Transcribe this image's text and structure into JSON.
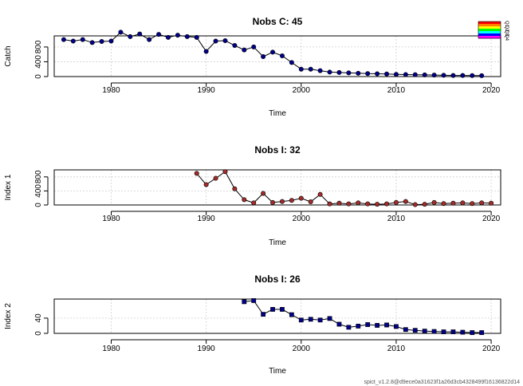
{
  "footer": "spict_v1.2.8@d9ece0a31623f1a26d3cb4328499f16136822d14",
  "colorbar": {
    "colors": [
      "#ff0000",
      "#ff8000",
      "#ffff00",
      "#00ff00",
      "#00ffff",
      "#0000ff",
      "#ff00ff"
    ],
    "labels": [
      "Q1",
      "Q2",
      "Q3",
      "Q4"
    ]
  },
  "chart_data": [
    {
      "type": "line",
      "title": "Nobs C: 45",
      "xlabel": "Time",
      "ylabel": "Catch",
      "xlim": [
        1974,
        2021
      ],
      "ylim": [
        0,
        1100
      ],
      "xticks": [
        1980,
        1990,
        2000,
        2010,
        2020
      ],
      "yticks": [
        0,
        400,
        800
      ],
      "grid": true,
      "marker": "circle",
      "point_color": "#00008b",
      "x": [
        1975,
        1976,
        1977,
        1978,
        1979,
        1980,
        1981,
        1982,
        1983,
        1984,
        1985,
        1986,
        1987,
        1988,
        1989,
        1990,
        1991,
        1992,
        1993,
        1994,
        1995,
        1996,
        1997,
        1998,
        1999,
        2000,
        2001,
        2002,
        2003,
        2004,
        2005,
        2006,
        2007,
        2008,
        2009,
        2010,
        2011,
        2012,
        2013,
        2014,
        2015,
        2016,
        2017,
        2018,
        2019
      ],
      "y": [
        1000,
        960,
        1000,
        920,
        950,
        960,
        1200,
        1080,
        1150,
        1000,
        1140,
        1060,
        1120,
        1080,
        1060,
        680,
        960,
        970,
        840,
        720,
        800,
        540,
        660,
        560,
        380,
        200,
        200,
        160,
        120,
        110,
        100,
        90,
        80,
        75,
        70,
        60,
        55,
        50,
        45,
        40,
        35,
        30,
        30,
        28,
        25
      ]
    },
    {
      "type": "line",
      "title": "Nobs I: 32",
      "xlabel": "Time",
      "ylabel": "Index 1",
      "xlim": [
        1974,
        2021
      ],
      "ylim": [
        0,
        1000
      ],
      "xticks": [
        1980,
        1990,
        2000,
        2010,
        2020
      ],
      "yticks": [
        0,
        400,
        800
      ],
      "grid": true,
      "marker": "circle",
      "point_color": "#a52a2a",
      "x": [
        1989,
        1990,
        1991,
        1992,
        1993,
        1994,
        1995,
        1996,
        1997,
        1998,
        1999,
        2000,
        2001,
        2002,
        2003,
        2004,
        2005,
        2006,
        2007,
        2008,
        2009,
        2010,
        2011,
        2012,
        2013,
        2014,
        2015,
        2016,
        2017,
        2018,
        2019,
        2020
      ],
      "y": [
        900,
        580,
        760,
        950,
        460,
        150,
        60,
        330,
        70,
        100,
        130,
        190,
        90,
        300,
        30,
        50,
        30,
        60,
        30,
        20,
        30,
        70,
        100,
        10,
        20,
        70,
        40,
        50,
        60,
        40,
        60,
        50
      ]
    },
    {
      "type": "line",
      "title": "Nobs I: 26",
      "xlabel": "Time",
      "ylabel": "Index 2",
      "xlim": [
        1974,
        2021
      ],
      "ylim": [
        0,
        90
      ],
      "xticks": [
        1980,
        1990,
        2000,
        2010,
        2020
      ],
      "yticks": [
        0,
        40
      ],
      "grid": true,
      "marker": "square",
      "point_color": "#00008b",
      "x": [
        1994,
        1995,
        1996,
        1997,
        1998,
        1999,
        2000,
        2001,
        2002,
        2003,
        2004,
        2005,
        2006,
        2007,
        2008,
        2009,
        2010,
        2011,
        2012,
        2013,
        2014,
        2015,
        2016,
        2017,
        2018,
        2019
      ],
      "y": [
        83,
        86,
        50,
        63,
        63,
        49,
        35,
        37,
        35,
        39,
        24,
        16,
        19,
        23,
        21,
        22,
        18,
        10,
        8,
        6,
        5,
        4,
        4,
        3,
        2,
        2
      ]
    }
  ]
}
